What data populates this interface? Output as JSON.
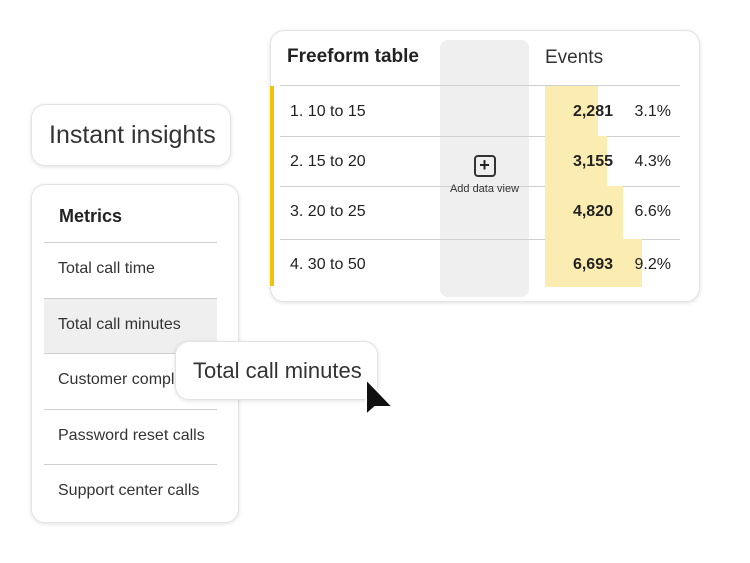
{
  "table": {
    "title": "Freeform table",
    "metric_header": "Events",
    "add_data_view": "Add data view",
    "accent_color": "#f3c400",
    "bar_color": "#fbedb1",
    "rows": [
      {
        "label": "1.  10 to 15",
        "value": "2,281",
        "raw": 2281,
        "pct": "3.1%"
      },
      {
        "label": "2.  15 to 20",
        "value": "3,155",
        "raw": 3155,
        "pct": "4.3%"
      },
      {
        "label": "3.  20 to 25",
        "value": "4,820",
        "raw": 4820,
        "pct": "6.6%"
      },
      {
        "label": "4. 30 to 50",
        "value": "6,693",
        "raw": 6693,
        "pct": "9.2%"
      }
    ]
  },
  "insights": {
    "label": "Instant insights"
  },
  "metrics": {
    "title": "Metrics",
    "items": [
      "Total call time",
      "Total call minutes",
      "Customer complaints",
      "Password reset calls",
      "Support center calls"
    ],
    "hovered_index": 1
  },
  "tooltip": {
    "text": "Total call minutes"
  }
}
